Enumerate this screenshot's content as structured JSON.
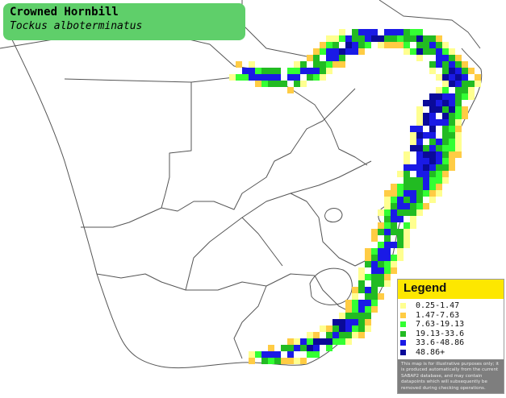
{
  "title": {
    "common_name": "Crowned Hornbill",
    "scientific_name": "Tockus alboterminatus"
  },
  "legend": {
    "heading": "Legend",
    "items": [
      {
        "label": "0.25-1.47",
        "color": "#ffff90"
      },
      {
        "label": "1.47-7.63",
        "color": "#ffcc44"
      },
      {
        "label": "7.63-19.13",
        "color": "#33ff33"
      },
      {
        "label": "19.13-33.6",
        "color": "#22bb22"
      },
      {
        "label": "33.6-48.86",
        "color": "#1a1ae6"
      },
      {
        "label": "48.86+",
        "color": "#0a0a99"
      }
    ],
    "disclaimer": "This map is for illustrative purposes only; it is produced automatically from the current SABAP2 database, and may contain datapoints which will subsequently be removed during checking operations."
  },
  "colors": {
    "title_box": "#5fcf6a",
    "legend_header": "#fde700",
    "border_lines": "#555555"
  }
}
